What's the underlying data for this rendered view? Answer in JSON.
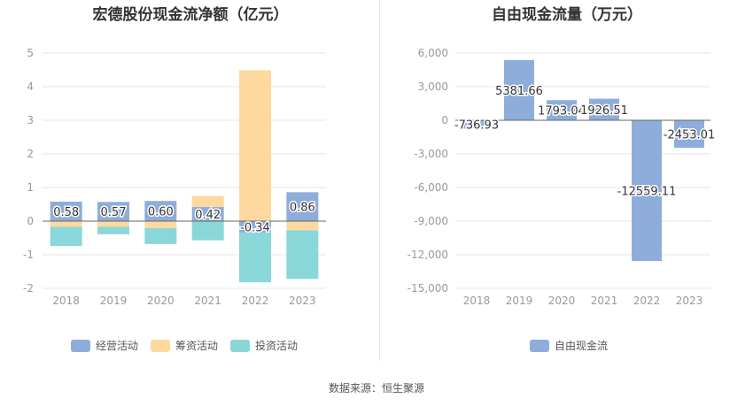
{
  "left_panel": {
    "title": "宏德股份现金流净额（亿元）"
  },
  "right_panel": {
    "title": "自由现金流量（万元）"
  },
  "source": "数据来源：恒生聚源",
  "colors": {
    "operating": "#8eaddb",
    "financing": "#fdd9a0",
    "investing": "#8ad7da",
    "free_cash_flow": "#8eaddb",
    "axis_text": "#999999",
    "grid": "#e6e6e6"
  },
  "chart_data": [
    {
      "type": "bar",
      "stacked": true,
      "title": "宏德股份现金流净额（亿元）",
      "categories": [
        "2018",
        "2019",
        "2020",
        "2021",
        "2022",
        "2023"
      ],
      "ylim": [
        -2,
        5
      ],
      "yticks": [
        "5",
        "4",
        "3",
        "2",
        "1",
        "0",
        "-1",
        "-2"
      ],
      "grid": true,
      "legend_position": "bottom",
      "series": [
        {
          "name": "经营活动",
          "values": [
            0.58,
            0.57,
            0.6,
            0.42,
            -0.34,
            0.86
          ],
          "labels": [
            "0.58",
            "0.57",
            "0.60",
            "0.42",
            "-0.34",
            "0.86"
          ]
        },
        {
          "name": "筹资活动",
          "values": [
            -0.17,
            -0.17,
            -0.21,
            0.33,
            4.49,
            -0.27
          ]
        },
        {
          "name": "投资活动",
          "values": [
            -0.57,
            -0.22,
            -0.47,
            -0.57,
            -1.48,
            -1.45
          ]
        }
      ]
    },
    {
      "type": "bar",
      "title": "自由现金流量（万元）",
      "categories": [
        "2018",
        "2019",
        "2020",
        "2021",
        "2022",
        "2023"
      ],
      "ylim": [
        -15000,
        6000
      ],
      "yticks": [
        "6,000",
        "3,000",
        "0",
        "-3,000",
        "-6,000",
        "-9,000",
        "-12,000",
        "-15,000"
      ],
      "grid": true,
      "legend_position": "bottom",
      "series": [
        {
          "name": "自由现金流",
          "values": [
            -736.93,
            5381.66,
            1793.04,
            1926.51,
            -12559.11,
            -2453.01
          ],
          "labels": [
            "-736.93",
            "5381.66",
            "1793.04",
            "1926.51",
            "-12559.11",
            "-2453.01"
          ]
        }
      ]
    }
  ]
}
